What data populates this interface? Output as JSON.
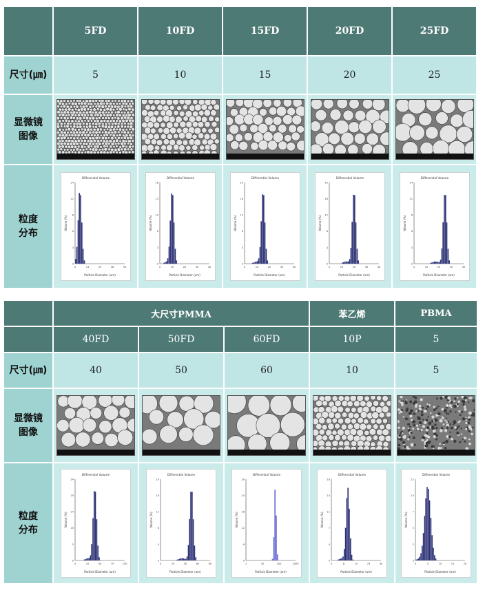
{
  "top_table": {
    "headers": [
      "5FD",
      "10FD",
      "15FD",
      "20FD",
      "25FD"
    ],
    "size_label": "尺寸(㎛)",
    "sizes": [
      "5",
      "10",
      "15",
      "20",
      "25"
    ],
    "microscope_label": [
      "显微镜",
      "图像"
    ],
    "distribution_label": [
      "粒度",
      "分布"
    ]
  },
  "bottom_table": {
    "groups": [
      {
        "label": "大尺寸PMMA",
        "span": 3
      },
      {
        "label": "苯乙烯",
        "span": 1
      },
      {
        "label": "PBMA",
        "span": 1
      }
    ],
    "models": [
      "40FD",
      "50FD",
      "60FD",
      "10P",
      "5"
    ],
    "size_label": "尺寸(㎛)",
    "sizes": [
      "40",
      "50",
      "60",
      "10",
      "5"
    ],
    "microscope_label": [
      "显微镜",
      "图像"
    ],
    "distribution_label": [
      "粒度",
      "分布"
    ]
  },
  "histograms": {
    "title": "Differential Volume",
    "xlabel": "Particle Diameter (um)",
    "ylabel": "Volume (%)"
  },
  "chart_data": [
    {
      "type": "bar",
      "title": "Differential Volume",
      "xlabel": "Particle Diameter (um)",
      "ylabel": "Volume (%)",
      "peak_x": 5,
      "xlim": [
        0,
        50
      ],
      "ylim": [
        0,
        14
      ],
      "color": "#2b2f6e"
    },
    {
      "type": "bar",
      "title": "Differential Volume",
      "xlabel": "Particle Diameter (um)",
      "ylabel": "Volume (%)",
      "peak_x": 10,
      "xlim": [
        0,
        40
      ],
      "ylim": [
        0,
        16
      ],
      "color": "#2b2f6e"
    },
    {
      "type": "bar",
      "title": "Differential Volume",
      "xlabel": "Particle Diameter (um)",
      "ylabel": "Volume (%)",
      "peak_x": 15,
      "xlim": [
        0,
        40
      ],
      "ylim": [
        0,
        20
      ],
      "color": "#2b2f6e"
    },
    {
      "type": "bar",
      "title": "Differential Volume",
      "xlabel": "Particle Diameter (um)",
      "ylabel": "Volume (%)",
      "peak_x": 20,
      "xlim": [
        0,
        40
      ],
      "ylim": [
        0,
        20
      ],
      "color": "#2b2f6e"
    },
    {
      "type": "bar",
      "title": "Differential Volume",
      "xlabel": "Particle Diameter (um)",
      "ylabel": "Volume (%)",
      "peak_x": 25,
      "xlim": [
        0,
        40
      ],
      "ylim": [
        0,
        14
      ],
      "color": "#2b2f6e"
    },
    {
      "type": "bar",
      "title": "Differential Volume",
      "xlabel": "Particle Diameter (um)",
      "ylabel": "Volume (%)",
      "peak_x": 40,
      "xlim": [
        0,
        100
      ],
      "ylim": [
        0,
        24
      ],
      "color": "#2b2f6e"
    },
    {
      "type": "bar",
      "title": "Differential Volume",
      "xlabel": "Particle Diameter (um)",
      "ylabel": "Volume (%)",
      "peak_x": 50,
      "xlim": [
        0,
        80
      ],
      "ylim": [
        0,
        20
      ],
      "color": "#2b2f6e"
    },
    {
      "type": "bar",
      "title": "Differential Volume",
      "xlabel": "Particle Diameter (um)",
      "ylabel": "Volume (%)",
      "peak_x": 60,
      "xlim": [
        1,
        1000
      ],
      "log_x": true,
      "ylim": [
        0,
        30
      ],
      "color": "#7070d8"
    },
    {
      "type": "bar",
      "title": "Differential Volume",
      "xlabel": "Particle Diameter (um)",
      "ylabel": "Volume (%)",
      "peak_x": 10,
      "xlim": [
        0,
        30
      ],
      "ylim": [
        0,
        18
      ],
      "color": "#2b2f6e"
    },
    {
      "type": "bar",
      "title": "Differential Volume",
      "xlabel": "Particle Diameter (um)",
      "ylabel": "Volume (%)",
      "peak_x": 5,
      "xlim": [
        0,
        20
      ],
      "ylim": [
        0,
        12
      ],
      "color": "#2b2f6e"
    }
  ]
}
